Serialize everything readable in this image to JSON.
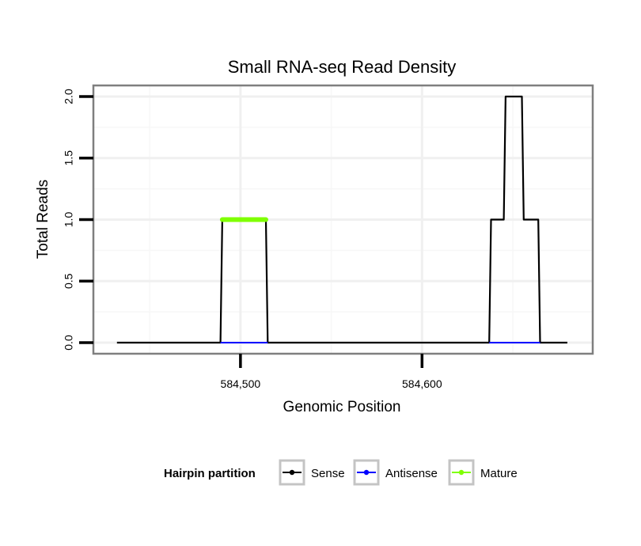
{
  "chart_data": {
    "type": "line",
    "title": "Small RNA-seq Read Density",
    "xlabel": "Genomic Position",
    "ylabel": "Total Reads",
    "xlim": [
      584419,
      584694
    ],
    "ylim": [
      -0.09,
      2.09
    ],
    "x_ticks": [
      584500,
      584600
    ],
    "x_tick_labels": [
      "584,500",
      "584,600"
    ],
    "y_ticks": [
      0.0,
      0.5,
      1.0,
      1.5,
      2.0
    ],
    "y_tick_labels": [
      "0.0",
      "0.5",
      "1.0",
      "1.5",
      "2.0"
    ],
    "grid": true,
    "legend": {
      "title": "Hairpin partition",
      "position": "bottom",
      "entries": [
        {
          "name": "Sense",
          "color": "#000000"
        },
        {
          "name": "Antisense",
          "color": "#0000ff"
        },
        {
          "name": "Mature",
          "color": "#7fff00"
        }
      ]
    },
    "series": [
      {
        "name": "Sense",
        "color": "#000000",
        "x": [
          584432,
          584489,
          584490,
          584514,
          584515,
          584637,
          584638,
          584645,
          584646,
          584655,
          584656,
          584664,
          584665,
          584680
        ],
        "y": [
          0,
          0,
          1,
          1,
          0,
          0,
          1,
          1,
          2,
          2,
          1,
          1,
          0,
          0
        ]
      },
      {
        "name": "Antisense",
        "color": "#0000ff",
        "segments": [
          [
            584489,
            584515
          ],
          [
            584637,
            584665
          ]
        ],
        "value": 0
      },
      {
        "name": "Mature",
        "color": "#7fff00",
        "segments": [
          [
            584490,
            584514
          ]
        ],
        "value": 1
      }
    ]
  }
}
